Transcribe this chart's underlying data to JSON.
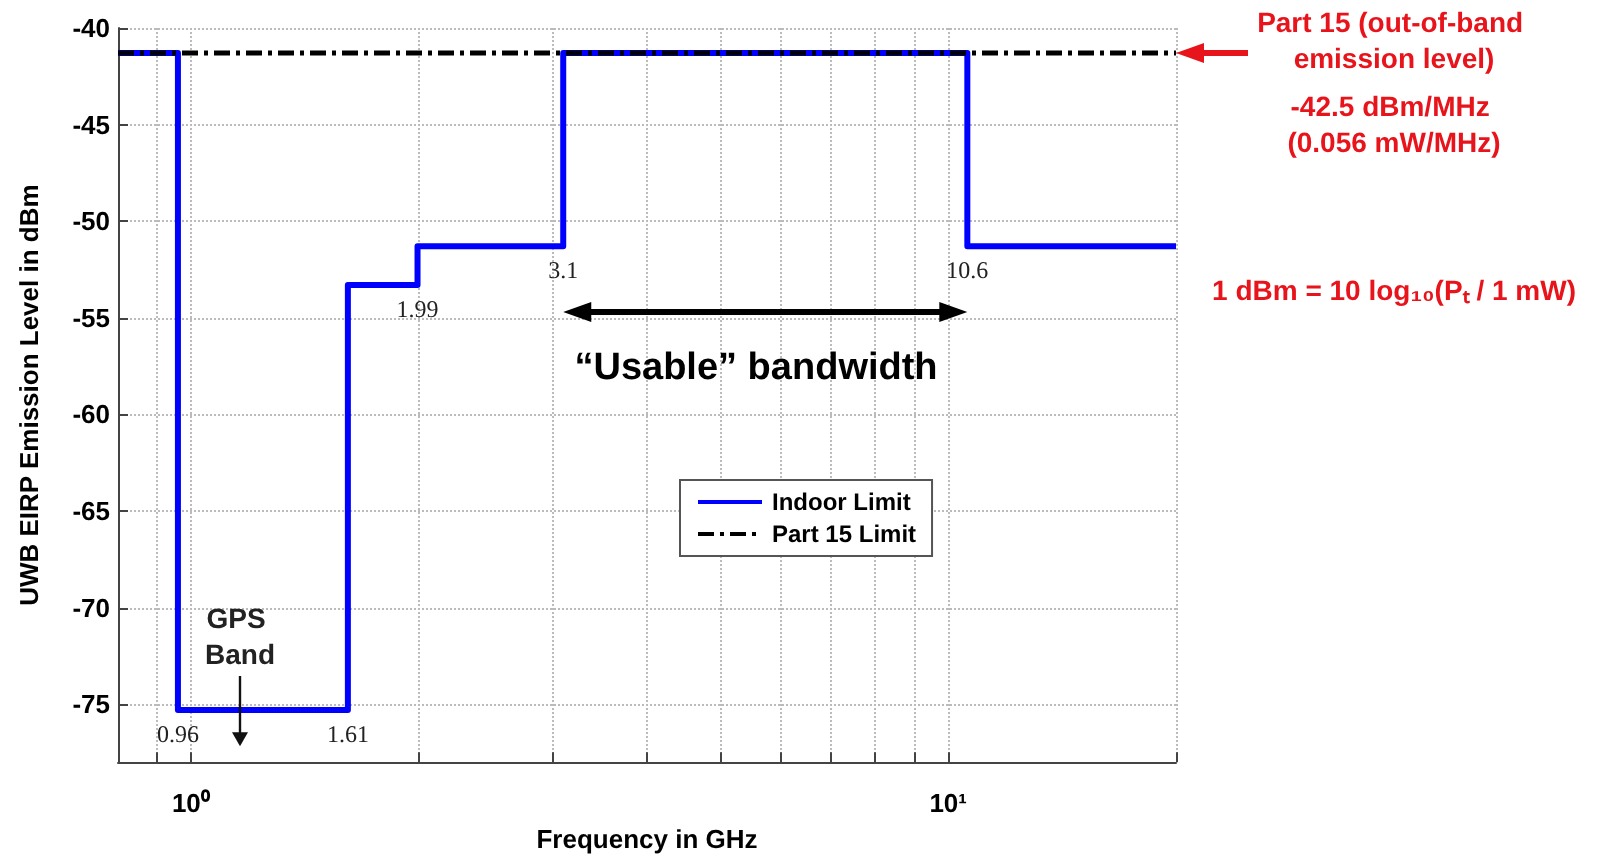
{
  "chart_data": {
    "type": "step",
    "xlabel": "Frequency in GHz",
    "ylabel": "UWB EIRP Emission Level in dBm",
    "series": [
      {
        "name": "Indoor Limit",
        "color": "#0000ff",
        "line_style": "solid",
        "x": [
          0.8,
          0.96,
          1.61,
          1.99,
          3.1,
          10.6,
          20
        ],
        "values": [
          -41.3,
          -75.3,
          -53.3,
          -51.3,
          -41.3,
          -51.3,
          -51.3
        ]
      },
      {
        "name": "Part 15 Limit",
        "color": "#000000",
        "type": "line",
        "line_style": "dashed",
        "x": [
          0.8,
          20
        ],
        "values": [
          -41.3,
          -41.3
        ]
      }
    ],
    "log": "x",
    "xlim": [
      0.8,
      20
    ],
    "ylim": [
      -78,
      -40
    ],
    "xticks": [
      {
        "value": 0.9,
        "label": null
      },
      {
        "value": 1,
        "label": "10⁰"
      },
      {
        "value": 2,
        "label": null
      },
      {
        "value": 3,
        "label": null
      },
      {
        "value": 4,
        "label": null
      },
      {
        "value": 5,
        "label": null
      },
      {
        "value": 6,
        "label": null
      },
      {
        "value": 7,
        "label": null
      },
      {
        "value": 8,
        "label": null
      },
      {
        "value": 9,
        "label": null
      },
      {
        "value": 10,
        "label": "10¹"
      },
      {
        "value": 20,
        "label": null
      }
    ],
    "yticks": [
      -75,
      -70,
      -65,
      -60,
      -55,
      -50,
      -45,
      -40
    ],
    "grid": true,
    "legend": "bottom right",
    "marker": "none",
    "annotations": [
      {
        "text": "0.96",
        "x": 0.96,
        "y": -75.3
      },
      {
        "text": "1.61",
        "x": 1.61,
        "y": -75.3
      },
      {
        "text": "1.99",
        "x": 1.99,
        "y": -53.3
      },
      {
        "text": "3.1",
        "x": 3.1,
        "y": -51.3
      },
      {
        "text": "10.6",
        "x": 10.6,
        "y": -51.3
      },
      "GPS Band",
      "“Usable” bandwidth",
      "Part 15 (out-of-band emission level)",
      "-42.5 dBm/MHz (0.056 mW/MHz)",
      "1 dBm = 10 log₁₀(Pₜ / 1 mW)"
    ]
  }
}
